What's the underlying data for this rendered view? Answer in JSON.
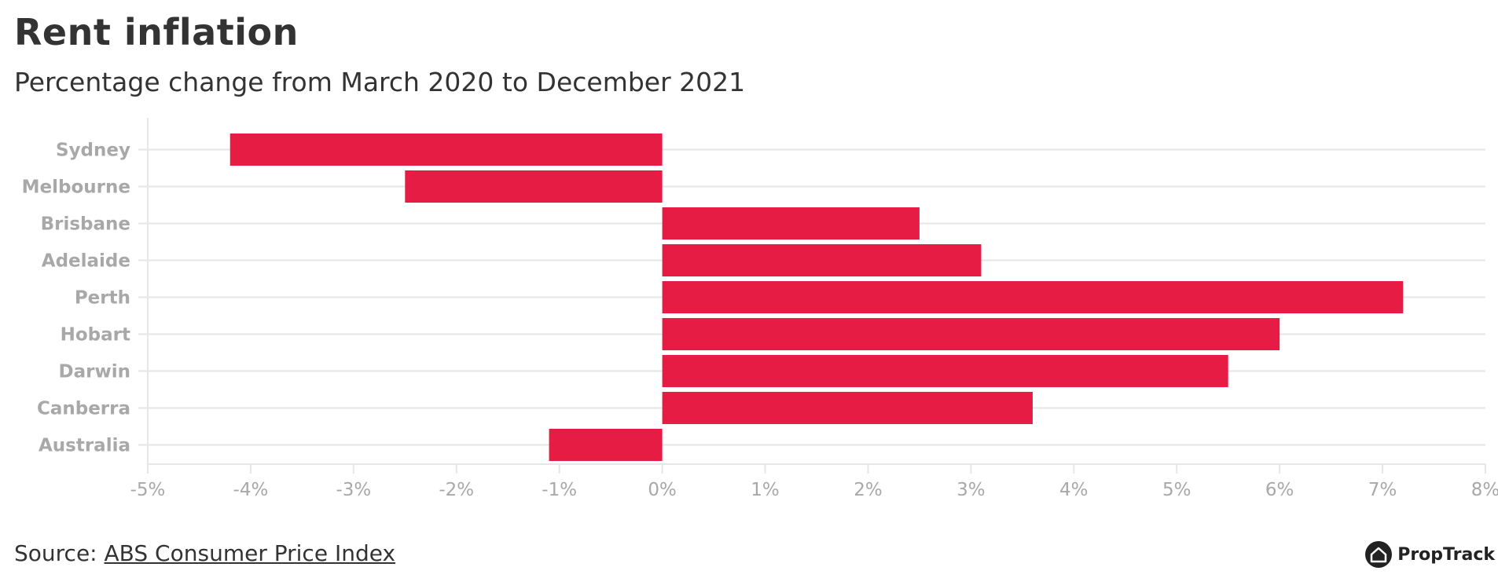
{
  "header": {
    "title": "Rent inflation",
    "subtitle": "Percentage change from March 2020 to December 2021"
  },
  "footer": {
    "source_prefix": "Source: ",
    "source_link": "ABS Consumer Price Index",
    "brand": "PropTrack"
  },
  "colors": {
    "bar": "#E71C44",
    "grid": "#E6E6E6",
    "axis_text": "#A8A8A8",
    "text": "#333333"
  },
  "icons": {
    "brand_logo": "house-icon"
  },
  "chart_data": {
    "type": "bar",
    "orientation": "horizontal",
    "categories": [
      "Sydney",
      "Melbourne",
      "Brisbane",
      "Adelaide",
      "Perth",
      "Hobart",
      "Darwin",
      "Canberra",
      "Australia"
    ],
    "values": [
      -4.2,
      -2.5,
      2.5,
      3.1,
      7.2,
      6.0,
      5.5,
      3.6,
      -1.1
    ],
    "xlim": [
      -5,
      8
    ],
    "xticks": [
      -5,
      -4,
      -3,
      -2,
      -1,
      0,
      1,
      2,
      3,
      4,
      5,
      6,
      7,
      8
    ],
    "tick_suffix": "%",
    "grid": true,
    "legend": "none"
  }
}
